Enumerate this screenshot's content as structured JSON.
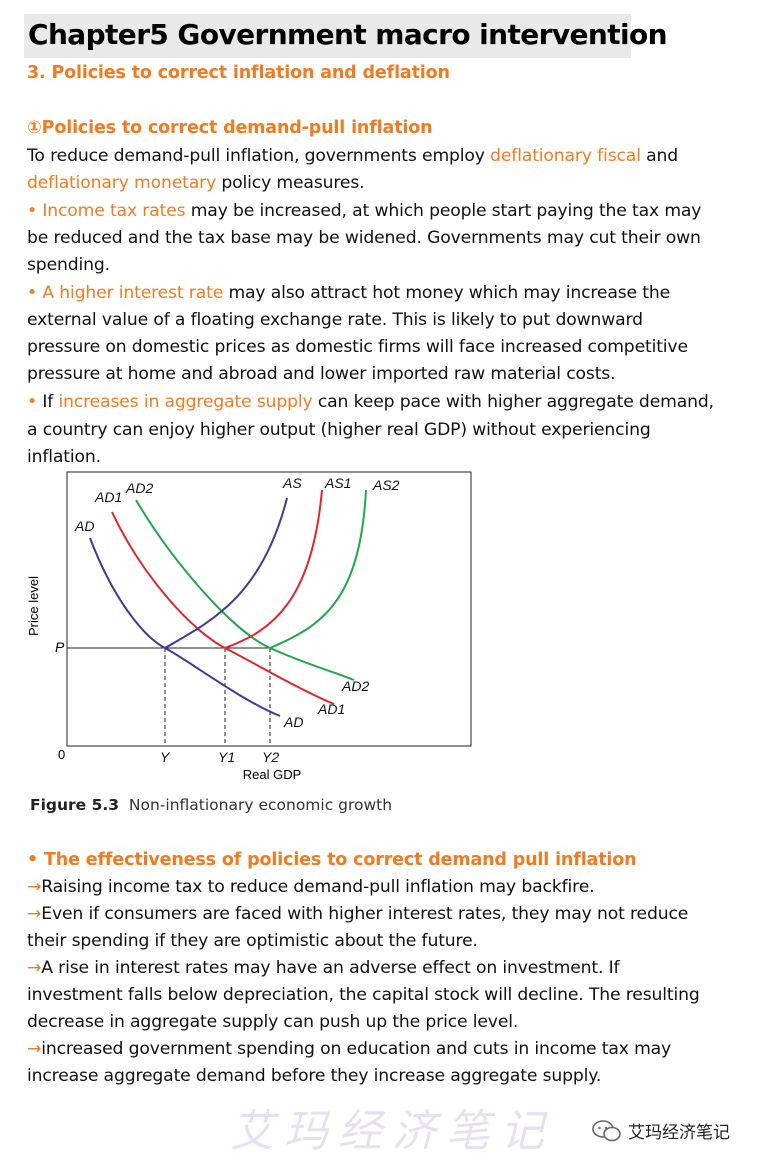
{
  "title": "Chapter5 Government macro intervention",
  "section": "3. Policies to correct inflation and deflation",
  "subsection": "①Policies to correct demand-pull inflation",
  "para1": {
    "a": "To reduce demand-pull inflation, governments employ ",
    "b": "deflationary fiscal",
    "c": " and",
    "d": "deflationary monetary",
    "e": " policy measures."
  },
  "bullet1": {
    "dot": " • ",
    "hl": "Income tax rates",
    "l1": " may be increased, at which people start paying the tax may",
    "l2": "be reduced and the tax base may be widened. Governments may cut their own",
    "l3": "spending."
  },
  "bullet2": {
    "dot": " • ",
    "hl": "A higher interest rate",
    "l1": " may also attract hot money which may increase the",
    "l2": "external value of a floating exchange rate. This is likely to put downward",
    "l3": "pressure on domestic prices as domestic firms will face increased competitive",
    "l4": "pressure at home and abroad and lower imported raw material costs."
  },
  "bullet3": {
    "dot": " • ",
    "pre": "If ",
    "hl": "increases in aggregate supply",
    "l1": " can keep pace with higher aggregate demand,",
    "l2": "a country can enjoy higher output (higher real GDP) without experiencing",
    "l3": "inflation."
  },
  "figure": {
    "caption_num": "Figure 5.3",
    "caption_text": "Non-inflationary economic growth",
    "ylabel": "Price level",
    "xlabel": "Real GDP",
    "origin": "0",
    "p_label": "P",
    "x_ticks": [
      "Y",
      "Y1",
      "Y2"
    ],
    "curve_labels": {
      "ad_top": "AD",
      "ad1_top": "AD1",
      "ad2_top": "AD2",
      "as": "AS",
      "as1": "AS1",
      "as2": "AS2",
      "ad_bottom": "AD",
      "ad1_bottom": "AD1",
      "ad2_bottom": "AD2"
    },
    "colors": {
      "ad": "#3a3aa0",
      "red": "#e0262c",
      "green": "#1fa84a",
      "axis": "#222222"
    }
  },
  "effectiveness": {
    "heading": " • The effectiveness of policies to correct demand pull inflation",
    "arrow": "→",
    "i1": "Raising income tax to reduce demand-pull inflation may backfire.",
    "i2a": "Even if consumers are faced with higher interest rates, they may not reduce",
    "i2b": "their spending if they are optimistic about the future.",
    "i3a": "A rise in interest rates may have an adverse effect on investment. If",
    "i3b": "investment falls below depreciation, the capital stock will decline. The resulting",
    "i3c": "decrease in aggregate supply can push up the price level.",
    "i4a": "increased government spending on education and cuts in income tax may",
    "i4b": "increase aggregate demand before they increase aggregate supply."
  },
  "watermark": "艾玛经济笔记",
  "brand": "艾玛经济笔记"
}
